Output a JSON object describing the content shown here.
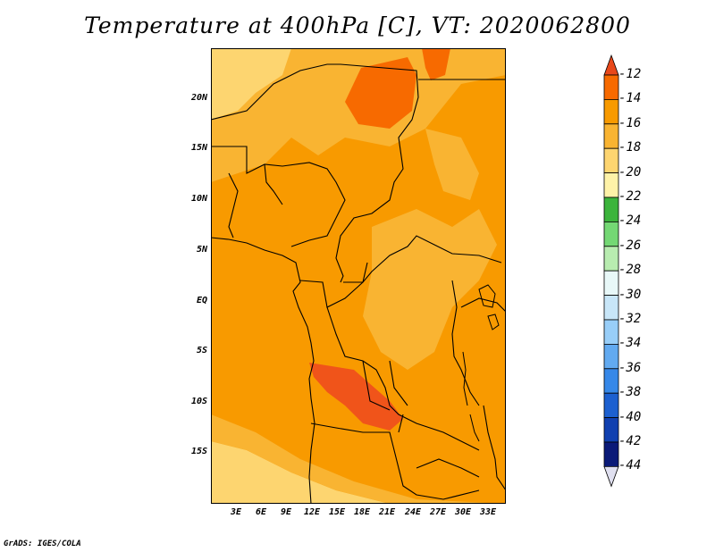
{
  "title": "Temperature at 400hPa [C], VT: 2020062800",
  "credit": "GrADS: IGES/COLA",
  "lat_labels": [
    "20N",
    "15N",
    "10N",
    "5N",
    "EQ",
    "5S",
    "10S",
    "15S"
  ],
  "lon_labels": [
    "3E",
    "6E",
    "9E",
    "12E",
    "15E",
    "18E",
    "21E",
    "24E",
    "27E",
    "30E",
    "33E"
  ],
  "colorbar": {
    "levels": [
      "-12",
      "-14",
      "-16",
      "-18",
      "-20",
      "-22",
      "-24",
      "-26",
      "-28",
      "-30",
      "-32",
      "-34",
      "-36",
      "-38",
      "-40",
      "-42",
      "-44"
    ],
    "colors": [
      "#e8481a",
      "#f76a00",
      "#f89a00",
      "#f9b432",
      "#fdd570",
      "#fef2a8",
      "#3cb43c",
      "#74d874",
      "#b8ecb0",
      "#e8f8f8",
      "#c8e6f8",
      "#98cef8",
      "#62aaf0",
      "#3688e8",
      "#1c60d0",
      "#1040b0",
      "#0a1a78",
      "#e0e0f0"
    ]
  },
  "map_colors": {
    "base": "#f89a00",
    "light": "#f9b432",
    "pale": "#fdd570",
    "warm": "#f76a00",
    "warmest": "#f0541a"
  }
}
